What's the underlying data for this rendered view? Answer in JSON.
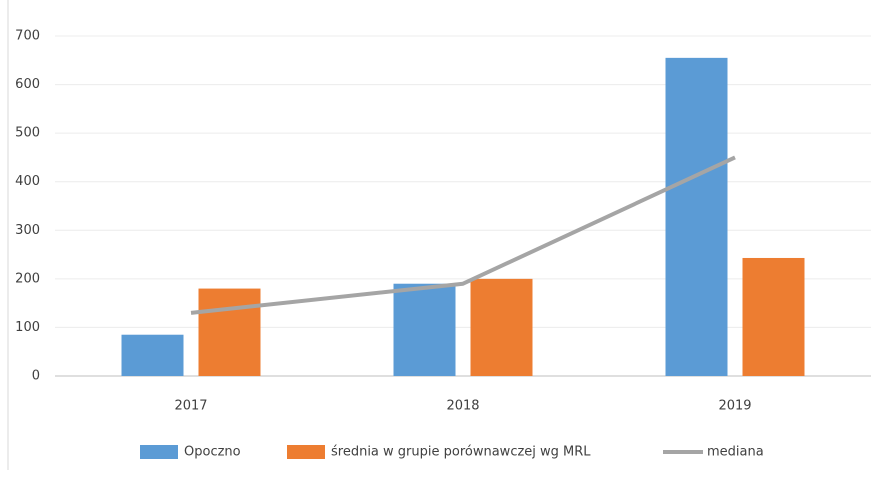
{
  "chart_data": {
    "type": "bar",
    "categories": [
      "2017",
      "2018",
      "2019"
    ],
    "series": [
      {
        "name": "Opoczno",
        "color": "#5b9bd5",
        "values": [
          85,
          190,
          655
        ]
      },
      {
        "name": "średnia w grupie porównawczej wg MRL",
        "color": "#ed7d31",
        "values": [
          180,
          200,
          243
        ]
      },
      {
        "name": "mediana",
        "color": "#a5a5a5",
        "type": "line",
        "values": [
          130,
          190,
          450
        ]
      }
    ],
    "ylim": [
      0,
      700
    ],
    "yticks": [
      0,
      100,
      200,
      300,
      400,
      500,
      600,
      700
    ],
    "grid": true,
    "legend": "bottom"
  }
}
